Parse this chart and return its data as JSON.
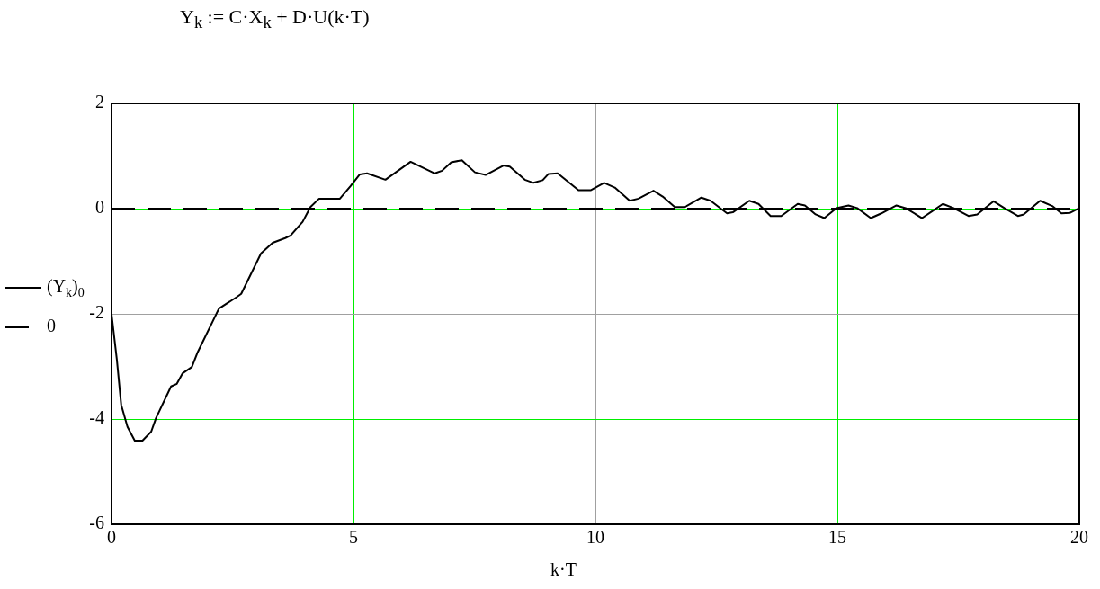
{
  "chart_data": {
    "type": "line",
    "title": "Y$_{k}$ := C·X$_{k}$ + D·U(k·T)",
    "xlabel": "k·T",
    "xlim": [
      0,
      20
    ],
    "xticks": [
      0,
      5,
      10,
      15,
      20
    ],
    "ylim": [
      -6,
      2
    ],
    "yticks": [
      -6,
      -4,
      -2,
      0,
      2
    ],
    "grid": true,
    "legend": "left",
    "marker": "none",
    "series": [
      {
        "name": "(Y$_{k}$)$_{0}$",
        "color": "#000000",
        "line_style": "solid",
        "x": [
          0,
          0.11,
          0.2,
          0.33,
          0.48,
          0.64,
          0.82,
          0.92,
          1.23,
          1.35,
          1.47,
          1.66,
          1.78,
          2.22,
          2.59,
          2.68,
          3.09,
          3.33,
          3.59,
          3.7,
          3.95,
          4.11,
          4.29,
          4.72,
          4.94,
          5.13,
          5.28,
          5.66,
          6.18,
          6.68,
          6.83,
          7.02,
          7.24,
          7.51,
          7.73,
          8.1,
          8.23,
          8.54,
          8.72,
          8.91,
          9.03,
          9.22,
          9.65,
          9.9,
          10.18,
          10.4,
          10.71,
          10.89,
          11.2,
          11.39,
          11.64,
          11.85,
          12.19,
          12.38,
          12.72,
          12.84,
          13.18,
          13.37,
          13.62,
          13.84,
          14.18,
          14.33,
          14.55,
          14.73,
          14.98,
          15.23,
          15.41,
          15.69,
          15.91,
          16.22,
          16.41,
          16.75,
          16.96,
          17.18,
          17.4,
          17.71,
          17.89,
          18.23,
          18.45,
          18.73,
          18.85,
          19.19,
          19.44,
          19.63,
          19.81,
          20
        ],
        "values": [
          -2,
          -2.87,
          -3.73,
          -4.15,
          -4.41,
          -4.41,
          -4.24,
          -3.98,
          -3.38,
          -3.33,
          -3.13,
          -3.01,
          -2.73,
          -1.9,
          -1.68,
          -1.62,
          -0.85,
          -0.65,
          -0.56,
          -0.51,
          -0.25,
          0.03,
          0.19,
          0.19,
          0.43,
          0.65,
          0.67,
          0.55,
          0.89,
          0.67,
          0.72,
          0.88,
          0.92,
          0.69,
          0.64,
          0.82,
          0.8,
          0.55,
          0.49,
          0.54,
          0.66,
          0.67,
          0.35,
          0.35,
          0.49,
          0.4,
          0.15,
          0.19,
          0.34,
          0.23,
          0.03,
          0.03,
          0.21,
          0.15,
          -0.09,
          -0.07,
          0.15,
          0.09,
          -0.14,
          -0.14,
          0.09,
          0.06,
          -0.11,
          -0.18,
          0.01,
          0.06,
          0.01,
          -0.18,
          -0.09,
          0.06,
          0.01,
          -0.18,
          -0.05,
          0.09,
          0.01,
          -0.14,
          -0.11,
          0.14,
          0.01,
          -0.14,
          -0.11,
          0.15,
          0.05,
          -0.09,
          -0.08,
          0.01
        ]
      },
      {
        "name": "0",
        "color": "#000000",
        "line_style": "dashed",
        "x": [
          0,
          20
        ],
        "values": [
          0,
          0
        ]
      }
    ]
  }
}
